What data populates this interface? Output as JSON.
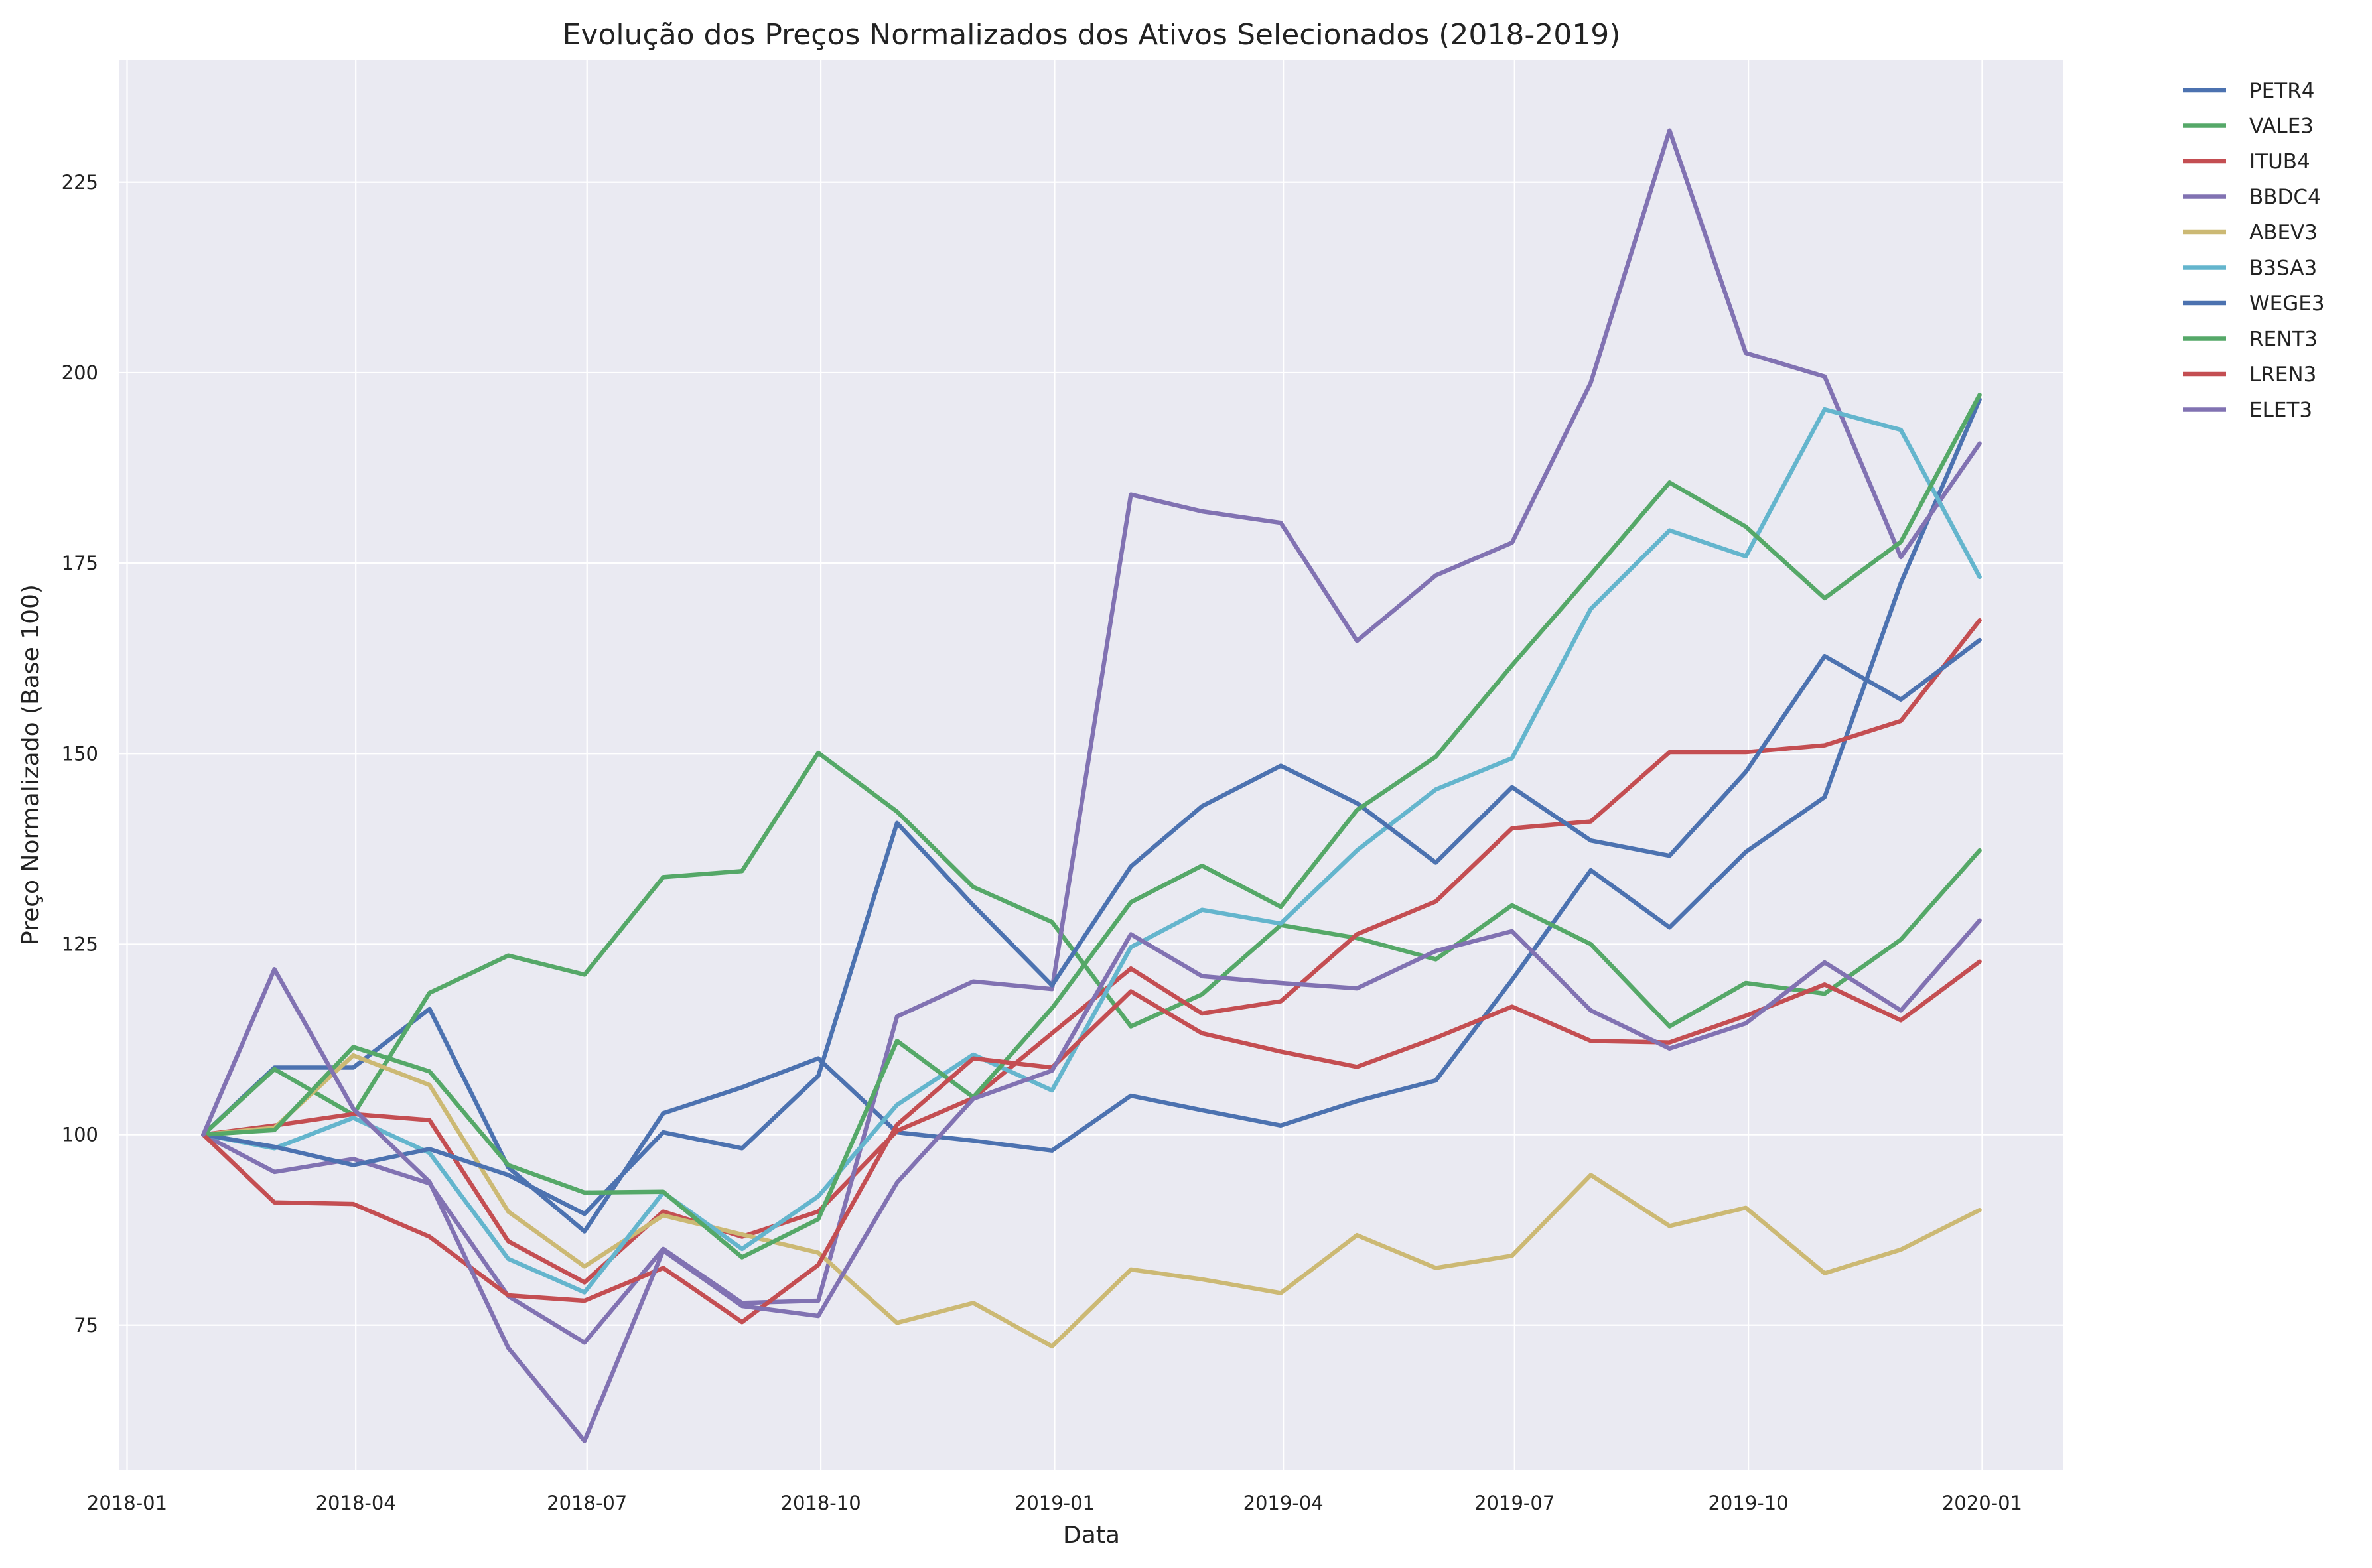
{
  "chart_data": {
    "type": "line",
    "title": "Evolução dos Preços Normalizados dos Ativos Selecionados (2018-2019)",
    "xlabel": "Data",
    "ylabel": "Preço Normalizado (Base 100)",
    "x": [
      "2018-01-31",
      "2018-02-28",
      "2018-03-31",
      "2018-04-30",
      "2018-05-31",
      "2018-06-30",
      "2018-07-31",
      "2018-08-31",
      "2018-09-30",
      "2018-10-31",
      "2018-11-30",
      "2018-12-31",
      "2019-01-31",
      "2019-02-28",
      "2019-03-31",
      "2019-04-30",
      "2019-05-31",
      "2019-06-30",
      "2019-07-31",
      "2019-08-31",
      "2019-09-30",
      "2019-10-31",
      "2019-11-30",
      "2019-12-31"
    ],
    "x_ticks": [
      "2018-01",
      "2018-04",
      "2018-07",
      "2018-10",
      "2019-01",
      "2019-04",
      "2019-07",
      "2019-10",
      "2020-01"
    ],
    "y_ticks": [
      75,
      100,
      125,
      150,
      175,
      200,
      225
    ],
    "ylim": [
      56,
      241
    ],
    "xlim": [
      "2017-12-29",
      "2020-02-02"
    ],
    "grid": true,
    "legend_position": "outside-top-right",
    "series": [
      {
        "name": "PETR4",
        "color": "#4c72b0",
        "values": [
          100,
          108.8,
          108.8,
          116.5,
          95.7,
          87.3,
          102.8,
          106.2,
          110,
          100.3,
          99.2,
          97.9,
          105.1,
          103.2,
          101.2,
          104.4,
          107.1,
          120.3,
          134.7,
          127.2,
          137.1,
          144.3,
          172.4,
          196.5
        ]
      },
      {
        "name": "VALE3",
        "color": "#55a868",
        "values": [
          100,
          108.6,
          102.6,
          118.6,
          123.5,
          121,
          133.8,
          134.6,
          150.1,
          142.4,
          132.5,
          127.9,
          114.2,
          118.4,
          127.5,
          125.8,
          123,
          130.1,
          125,
          114.2,
          119.9,
          118.5,
          125.6,
          137.3
        ]
      },
      {
        "name": "ITUB4",
        "color": "#c44e52",
        "values": [
          100,
          101.2,
          102.7,
          101.9,
          86,
          80.6,
          89.9,
          86.6,
          89.9,
          100.5,
          104.8,
          113.3,
          121.8,
          115.9,
          117.5,
          126.3,
          130.6,
          140.2,
          141.1,
          150.2,
          150.2,
          151.1,
          154.3,
          167.5
        ]
      },
      {
        "name": "BBDC4",
        "color": "#8172b2",
        "values": [
          100,
          95.1,
          96.8,
          93.6,
          78.8,
          72.7,
          85,
          77.9,
          78.2,
          115.5,
          120.1,
          119.1,
          184,
          181.8,
          180.3,
          164.8,
          173.4,
          177.7,
          198.7,
          231.8,
          202.6,
          199.5,
          175.8,
          190.7
        ]
      },
      {
        "name": "ABEV3",
        "color": "#ccb974",
        "values": [
          100,
          100.9,
          110.4,
          106.5,
          89.9,
          82.7,
          89.4,
          86.9,
          84.5,
          75.3,
          77.9,
          72.2,
          82.3,
          81,
          79.2,
          86.8,
          82.5,
          84.1,
          94.7,
          88,
          90.4,
          81.8,
          84.9,
          90.1
        ]
      },
      {
        "name": "B3SA3",
        "color": "#64b5cd",
        "values": [
          100,
          98.2,
          102.2,
          97.6,
          83.7,
          79.3,
          92.4,
          85,
          91.9,
          103.9,
          110.5,
          105.8,
          124.6,
          129.5,
          127.7,
          137.3,
          145.3,
          149.4,
          169,
          179.3,
          175.9,
          195.2,
          192.5,
          173.2
        ]
      },
      {
        "name": "WEGE3",
        "color": "#4c72b0",
        "values": [
          100,
          98.4,
          96,
          98.1,
          94.7,
          89.6,
          100.3,
          98.2,
          107.7,
          140.9,
          130.1,
          119.6,
          135.2,
          143.1,
          148.4,
          143.5,
          135.7,
          145.6,
          138.6,
          136.6,
          147.6,
          162.8,
          157.1,
          164.9
        ]
      },
      {
        "name": "RENT3",
        "color": "#55a868",
        "values": [
          100,
          100.6,
          111.5,
          108.3,
          96,
          92.4,
          92.5,
          83.9,
          88.9,
          112.3,
          104.9,
          116.6,
          130.5,
          135.3,
          129.9,
          142.6,
          149.6,
          161.6,
          173.5,
          185.6,
          179.8,
          170.4,
          177.8,
          197.1
        ]
      },
      {
        "name": "LREN3",
        "color": "#c44e52",
        "values": [
          100,
          91.1,
          90.9,
          86.6,
          78.9,
          78.2,
          82.5,
          75.4,
          82.9,
          101.3,
          110,
          108.8,
          118.8,
          113.3,
          110.9,
          108.9,
          112.7,
          116.8,
          112.3,
          112.1,
          115.6,
          119.7,
          115,
          122.7
        ]
      },
      {
        "name": "ELET3",
        "color": "#8172b2",
        "values": [
          100,
          121.7,
          103.4,
          93.8,
          72,
          59.8,
          84.8,
          77.5,
          76.2,
          93.7,
          104.7,
          108.4,
          126.3,
          120.8,
          119.9,
          119.2,
          124.1,
          126.7,
          116.3,
          111.3,
          114.6,
          122.6,
          116.3,
          128.1
        ]
      }
    ]
  }
}
